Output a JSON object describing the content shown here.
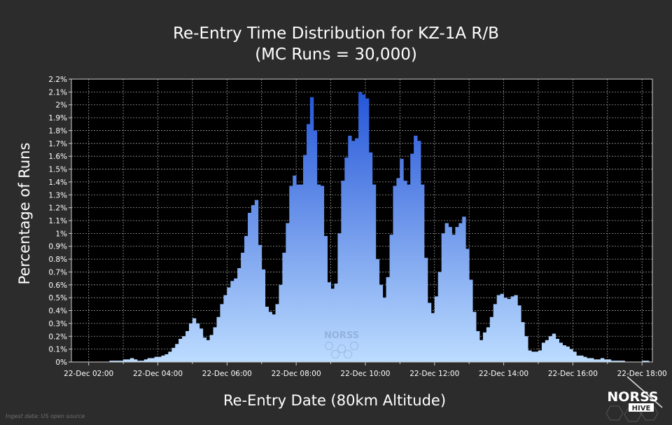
{
  "chart_data": {
    "type": "bar",
    "title": "Re-Entry Time Distribution for KZ-1A R/B",
    "subtitle": "(MC Runs = 30,000)",
    "xlabel": "Re-Entry Date (80km Altitude)",
    "ylabel": "Percentage of Runs",
    "x_tick_labels": [
      "22-Dec 02:00",
      "22-Dec 04:00",
      "22-Dec 06:00",
      "22-Dec 08:00",
      "22-Dec 10:00",
      "22-Dec 12:00",
      "22-Dec 14:00",
      "22-Dec 16:00",
      "22-Dec 18:00"
    ],
    "y_tick_labels": [
      "0%",
      "0.1%",
      "0.2%",
      "0.3%",
      "0.4%",
      "0.5%",
      "0.6%",
      "0.7%",
      "0.8%",
      "0.9%",
      "1%",
      "1.1%",
      "1.2%",
      "1.3%",
      "1.4%",
      "1.5%",
      "1.6%",
      "1.7%",
      "1.8%",
      "1.9%",
      "2%",
      "2.1%",
      "2.2%"
    ],
    "ylim": [
      0,
      2.2
    ],
    "x_range_hours": [
      1.5,
      18.3
    ],
    "bin_hours": 0.1,
    "first_bin_start_hour": 1.5,
    "grid": true,
    "legend": "none",
    "values": [
      0,
      0,
      0,
      0,
      0,
      0,
      0,
      0,
      0,
      0,
      0,
      0.01,
      0.01,
      0.01,
      0.01,
      0.02,
      0.02,
      0.03,
      0.02,
      0.01,
      0.01,
      0.02,
      0.03,
      0.03,
      0.04,
      0.04,
      0.05,
      0.06,
      0.08,
      0.11,
      0.14,
      0.18,
      0.2,
      0.24,
      0.3,
      0.34,
      0.3,
      0.26,
      0.19,
      0.17,
      0.21,
      0.27,
      0.35,
      0.45,
      0.52,
      0.58,
      0.63,
      0.65,
      0.73,
      0.85,
      0.98,
      1.16,
      1.22,
      1.26,
      0.91,
      0.72,
      0.43,
      0.39,
      0.37,
      0.45,
      0.6,
      0.85,
      1.08,
      1.37,
      1.45,
      1.38,
      1.38,
      1.61,
      1.85,
      2.06,
      1.8,
      1.38,
      1.37,
      0.98,
      0.62,
      0.57,
      0.61,
      1.0,
      1.41,
      1.59,
      1.76,
      1.72,
      1.74,
      2.1,
      2.08,
      2.05,
      1.63,
      1.38,
      0.8,
      0.6,
      0.5,
      0.66,
      0.99,
      1.37,
      1.43,
      1.58,
      1.41,
      1.38,
      1.62,
      1.76,
      1.72,
      1.38,
      0.81,
      0.46,
      0.38,
      0.51,
      0.7,
      1.0,
      1.08,
      1.05,
      0.99,
      1.05,
      1.08,
      1.13,
      0.88,
      0.64,
      0.39,
      0.24,
      0.17,
      0.23,
      0.27,
      0.35,
      0.45,
      0.52,
      0.53,
      0.5,
      0.49,
      0.51,
      0.52,
      0.44,
      0.31,
      0.2,
      0.09,
      0.08,
      0.08,
      0.09,
      0.15,
      0.17,
      0.2,
      0.22,
      0.18,
      0.15,
      0.13,
      0.12,
      0.1,
      0.08,
      0.05,
      0.05,
      0.04,
      0.03,
      0.03,
      0.02,
      0.02,
      0.03,
      0.02,
      0.02,
      0.01,
      0.01,
      0.01,
      0.01,
      0,
      0,
      0,
      0,
      0,
      0.01,
      0.01,
      0,
      0,
      0,
      0,
      0,
      0,
      0,
      0
    ]
  },
  "watermark_text": "NORSS",
  "logo": {
    "top": "NORSS",
    "bottom": "HIVE"
  },
  "footnote": "Ingest data: US open source",
  "colors": {
    "background": "#2c2c2c",
    "plot_background": "#000000",
    "grid": "#9a9a9a",
    "bar_top": "#1d4fd6",
    "bar_bottom": "#bcdcff"
  }
}
